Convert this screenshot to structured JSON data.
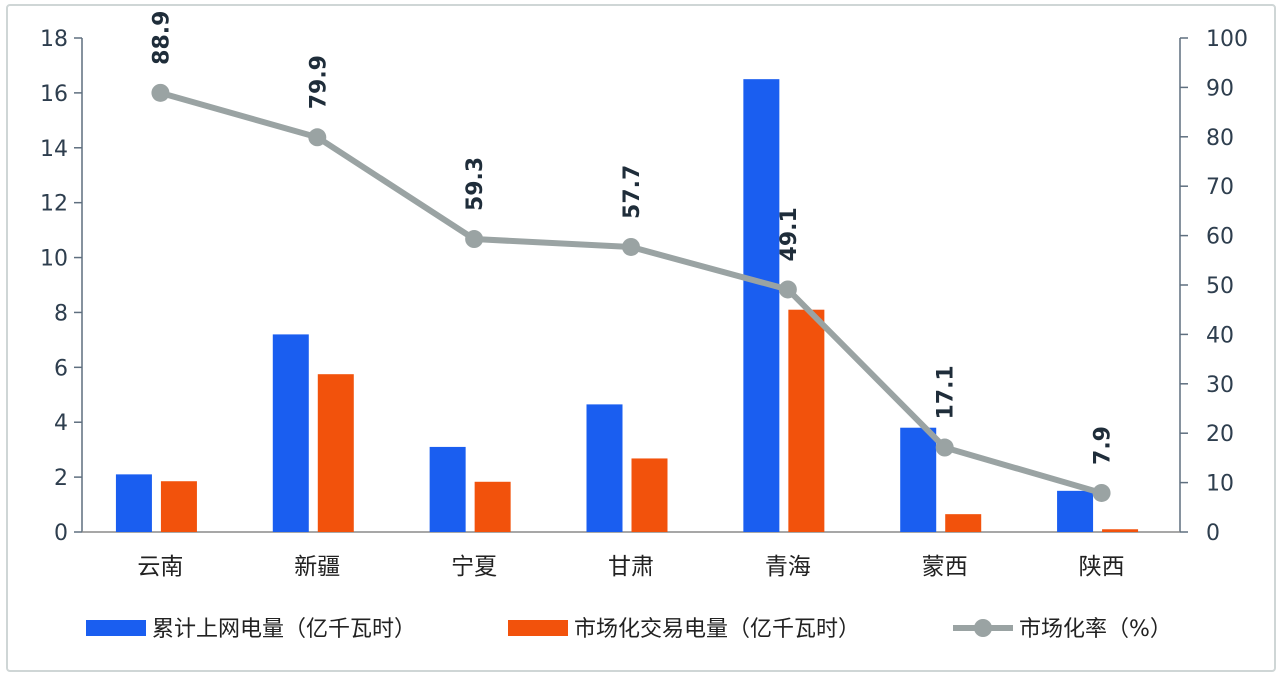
{
  "chart_data": {
    "type": "bar",
    "categories": [
      "云南",
      "新疆",
      "宁夏",
      "甘肃",
      "青海",
      "蒙西",
      "陕西"
    ],
    "series": [
      {
        "name": "累计上网电量（亿千瓦时）",
        "type": "bar",
        "axis": "left",
        "color": "#1a5ef0",
        "values": [
          2.1,
          7.2,
          3.1,
          4.65,
          16.5,
          3.8,
          1.5
        ]
      },
      {
        "name": "市场化交易电量（亿千瓦时）",
        "type": "bar",
        "axis": "right_scaled",
        "color": "#f2520c",
        "values": [
          1.85,
          5.75,
          1.83,
          2.68,
          8.1,
          0.65,
          0.1
        ]
      },
      {
        "name": "市场化率（%）",
        "type": "line",
        "axis": "right",
        "color": "#9aa3a3",
        "values": [
          88.9,
          79.9,
          59.3,
          57.7,
          49.1,
          17.1,
          7.9
        ]
      }
    ],
    "data_labels": [
      "88.9",
      "79.9",
      "59.3",
      "57.7",
      "49.1",
      "17.1",
      "7.9"
    ],
    "y_left": {
      "min": 0,
      "max": 18,
      "ticks": [
        "0",
        "2",
        "4",
        "6",
        "8",
        "10",
        "12",
        "14",
        "16",
        "18"
      ]
    },
    "y_right": {
      "min": 0,
      "max": 100,
      "ticks": [
        "0",
        "10",
        "20",
        "30",
        "40",
        "50",
        "60",
        "70",
        "80",
        "90",
        "100"
      ]
    },
    "legend": {
      "position": "bottom",
      "items": [
        {
          "label": "累计上网电量（亿千瓦时）",
          "color": "#1a5ef0",
          "kind": "bar"
        },
        {
          "label": "市场化交易电量（亿千瓦时）",
          "color": "#f2520c",
          "kind": "bar"
        },
        {
          "label": "市场化率（%）",
          "color": "#9aa3a3",
          "kind": "line"
        }
      ]
    },
    "grid": false
  }
}
